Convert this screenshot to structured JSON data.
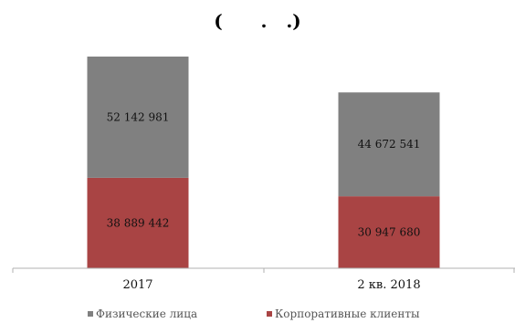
{
  "chart_data": {
    "type": "bar",
    "stacked": true,
    "title": "(      .   .)",
    "categories": [
      "2017",
      "2 кв. 2018"
    ],
    "series": [
      {
        "name": "Корпоративные клиенты",
        "values": [
          38889442,
          30947680
        ],
        "labels": [
          "38 889 442",
          "30 947 680"
        ],
        "color": "#a94444"
      },
      {
        "name": "Физические лица",
        "values": [
          52142981,
          44672541
        ],
        "labels": [
          "52 142 981",
          "44 672 541"
        ],
        "color": "#808080"
      }
    ],
    "legend_order": [
      "Физические лица",
      "Корпоративные клиенты"
    ],
    "legend": "bottom",
    "grid": false
  }
}
